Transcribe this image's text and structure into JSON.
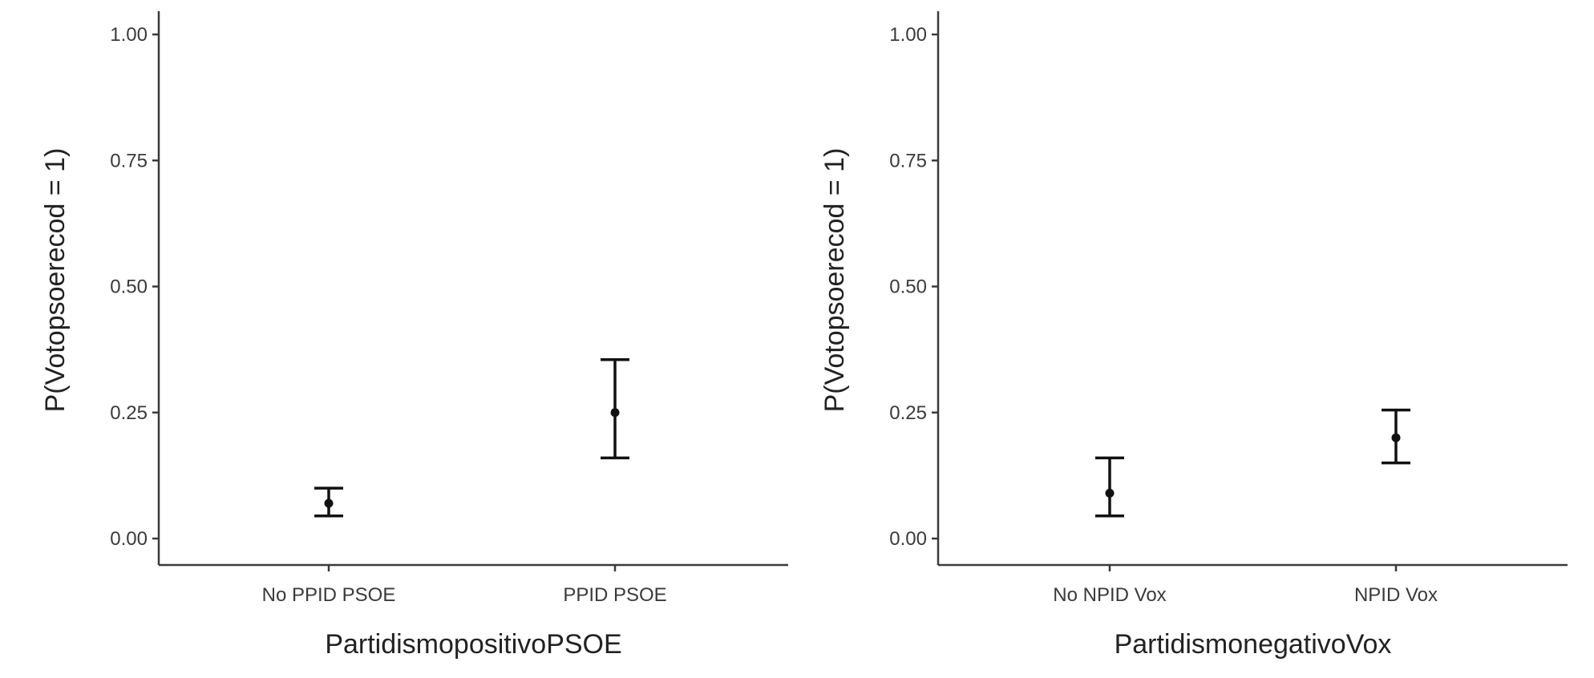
{
  "chart_data": [
    {
      "type": "scatter",
      "title": "",
      "xlabel": "PartidismopositivoPSOE",
      "ylabel": "P(Votopsoerecod = 1)",
      "categories": [
        "No PPID PSOE",
        "PPID PSOE"
      ],
      "yticks": [
        "0.00",
        "0.25",
        "0.50",
        "0.75",
        "1.00"
      ],
      "ylim": [
        0,
        1.05
      ],
      "grid": false,
      "points": [
        {
          "category": "No PPID PSOE",
          "estimate": 0.07,
          "lower": 0.045,
          "upper": 0.1
        },
        {
          "category": "PPID PSOE",
          "estimate": 0.25,
          "lower": 0.16,
          "upper": 0.355
        }
      ]
    },
    {
      "type": "scatter",
      "title": "",
      "xlabel": "PartidismonegativoVox",
      "ylabel": "P(Votopsoerecod = 1)",
      "categories": [
        "No NPID Vox",
        "NPID Vox"
      ],
      "yticks": [
        "0.00",
        "0.25",
        "0.50",
        "0.75",
        "1.00"
      ],
      "ylim": [
        0,
        1.05
      ],
      "grid": false,
      "points": [
        {
          "category": "No NPID Vox",
          "estimate": 0.09,
          "lower": 0.045,
          "upper": 0.16
        },
        {
          "category": "NPID Vox",
          "estimate": 0.2,
          "lower": 0.15,
          "upper": 0.255
        }
      ]
    }
  ]
}
